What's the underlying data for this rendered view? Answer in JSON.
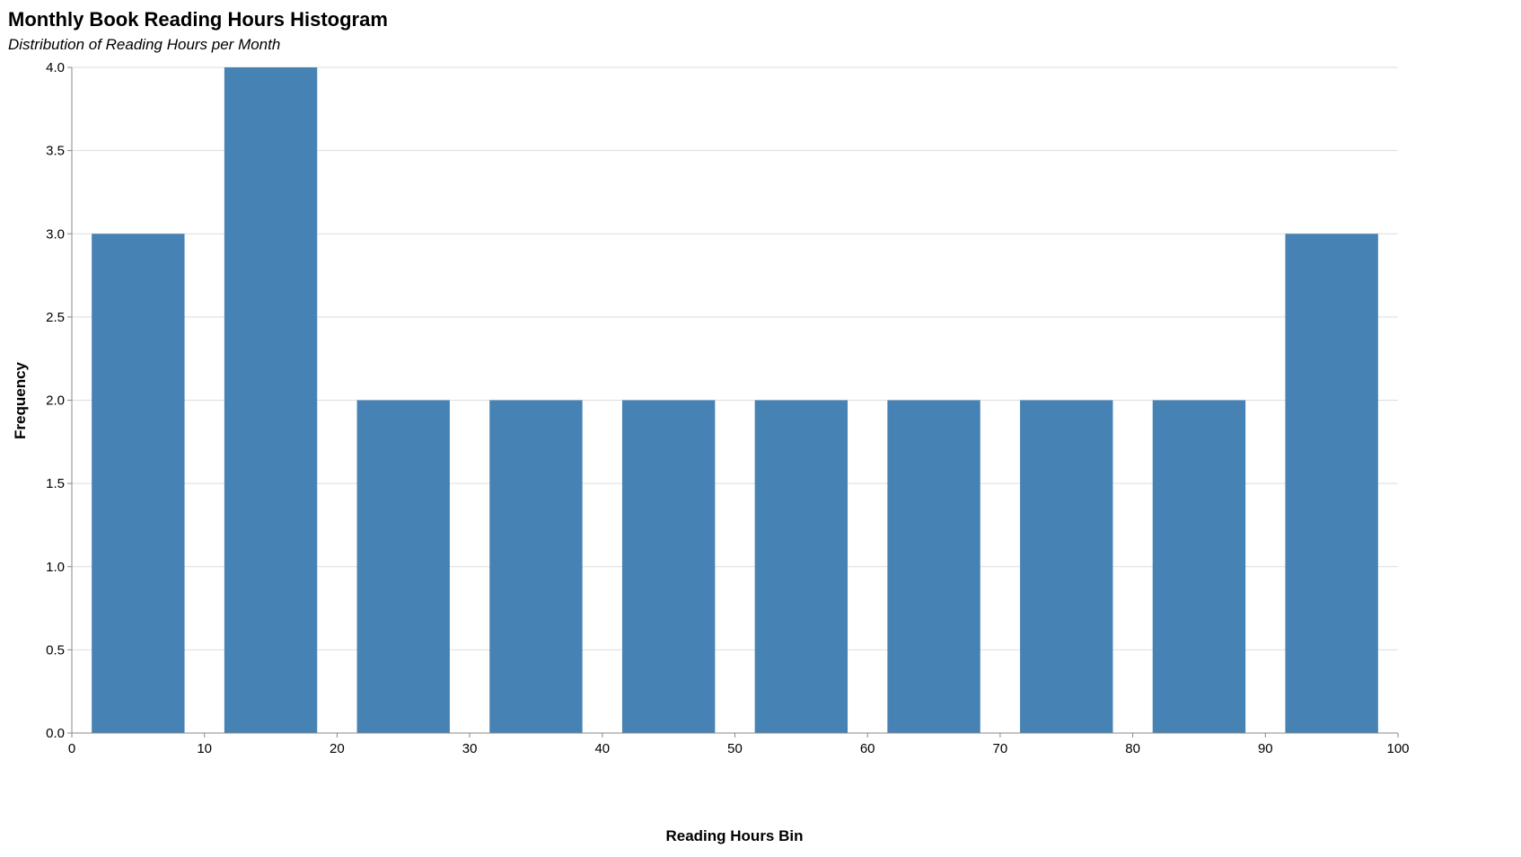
{
  "chart_data": {
    "type": "bar",
    "title": "Monthly Book Reading Hours Histogram",
    "subtitle": "Distribution of Reading Hours per Month",
    "xlabel": "Reading Hours Bin",
    "ylabel": "Frequency",
    "bins": [
      {
        "start": 0,
        "end": 10,
        "count": 3
      },
      {
        "start": 10,
        "end": 20,
        "count": 4
      },
      {
        "start": 20,
        "end": 30,
        "count": 2
      },
      {
        "start": 30,
        "end": 40,
        "count": 2
      },
      {
        "start": 40,
        "end": 50,
        "count": 2
      },
      {
        "start": 50,
        "end": 60,
        "count": 2
      },
      {
        "start": 60,
        "end": 70,
        "count": 2
      },
      {
        "start": 70,
        "end": 80,
        "count": 2
      },
      {
        "start": 80,
        "end": 90,
        "count": 2
      },
      {
        "start": 90,
        "end": 100,
        "count": 3
      }
    ],
    "xlim": [
      0,
      100
    ],
    "ylim": [
      0,
      4
    ],
    "x_ticks": [
      "0",
      "10",
      "20",
      "30",
      "40",
      "50",
      "60",
      "70",
      "80",
      "90",
      "100"
    ],
    "y_ticks": [
      "0.0",
      "0.5",
      "1.0",
      "1.5",
      "2.0",
      "2.5",
      "3.0",
      "3.5",
      "4.0"
    ],
    "grid": true,
    "bar_color": "#4682b4"
  }
}
